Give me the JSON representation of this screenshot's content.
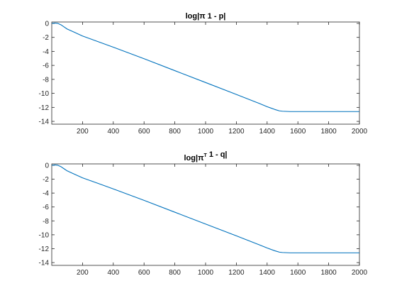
{
  "chart_data": [
    {
      "type": "line",
      "title": {
        "prefix": "log|",
        "symbol": "π",
        "superscript": "",
        "suffix": " 1 - p|"
      },
      "xlabel": "",
      "ylabel": "",
      "xlim": [
        0,
        2000
      ],
      "ylim": [
        -14.4,
        0.2
      ],
      "xticks": [
        200,
        400,
        600,
        800,
        1000,
        1200,
        1400,
        1600,
        1800,
        2000
      ],
      "yticks": [
        0,
        -2,
        -4,
        -6,
        -8,
        -10,
        -12,
        -14
      ],
      "grid": false,
      "series": [
        {
          "color": "#0072BD",
          "x": [
            1,
            20,
            40,
            60,
            80,
            100,
            150,
            200,
            300,
            400,
            600,
            800,
            1000,
            1200,
            1350,
            1400,
            1450,
            1480,
            1500,
            1550,
            1600,
            2000
          ],
          "y": [
            0,
            0.05,
            0,
            -0.2,
            -0.5,
            -0.8,
            -1.3,
            -1.8,
            -2.6,
            -3.4,
            -5.05,
            -6.75,
            -8.45,
            -10.15,
            -11.45,
            -11.9,
            -12.3,
            -12.5,
            -12.55,
            -12.6,
            -12.6,
            -12.6
          ]
        }
      ]
    },
    {
      "type": "line",
      "title": {
        "prefix": "log|",
        "symbol": "π",
        "superscript": "T",
        "suffix": " 1 - q|"
      },
      "xlabel": "",
      "ylabel": "",
      "xlim": [
        0,
        2000
      ],
      "ylim": [
        -14.4,
        0.2
      ],
      "xticks": [
        200,
        400,
        600,
        800,
        1000,
        1200,
        1400,
        1600,
        1800,
        2000
      ],
      "yticks": [
        0,
        -2,
        -4,
        -6,
        -8,
        -10,
        -12,
        -14
      ],
      "grid": false,
      "series": [
        {
          "color": "#0072BD",
          "x": [
            1,
            20,
            40,
            60,
            80,
            100,
            150,
            200,
            300,
            400,
            600,
            800,
            1000,
            1200,
            1350,
            1400,
            1450,
            1480,
            1500,
            1550,
            1600,
            2000
          ],
          "y": [
            0,
            0.05,
            0,
            -0.2,
            -0.5,
            -0.8,
            -1.3,
            -1.8,
            -2.6,
            -3.4,
            -5.05,
            -6.75,
            -8.45,
            -10.15,
            -11.45,
            -11.9,
            -12.3,
            -12.5,
            -12.55,
            -12.6,
            -12.6,
            -12.6
          ]
        }
      ]
    }
  ]
}
